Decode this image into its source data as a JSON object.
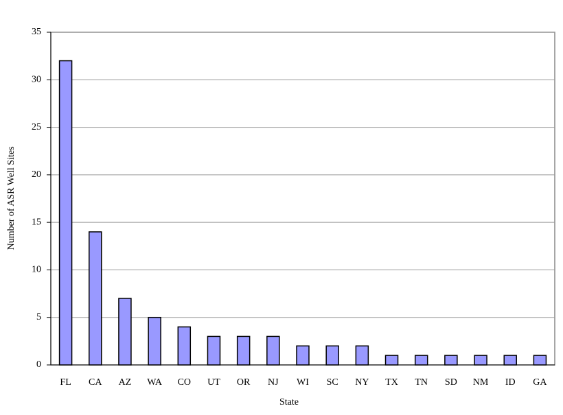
{
  "chart_data": {
    "type": "bar",
    "categories": [
      "FL",
      "CA",
      "AZ",
      "WA",
      "CO",
      "UT",
      "OR",
      "NJ",
      "WI",
      "SC",
      "NY",
      "TX",
      "TN",
      "SD",
      "NM",
      "ID",
      "GA"
    ],
    "values": [
      32,
      14,
      7,
      5,
      4,
      3,
      3,
      3,
      2,
      2,
      2,
      1,
      1,
      1,
      1,
      1,
      1
    ],
    "color": "#9999ff",
    "x_label": "State",
    "y_label": "Number of ASR Well Sites",
    "ylim": [
      0,
      35
    ],
    "yticks": [
      0,
      5,
      10,
      15,
      20,
      25,
      30,
      35
    ],
    "grid": true
  }
}
